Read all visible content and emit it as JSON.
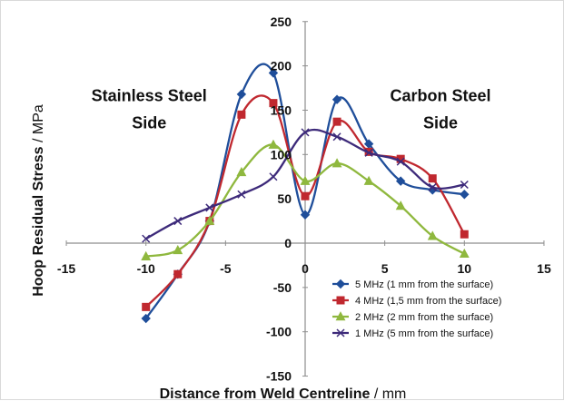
{
  "chart_data": {
    "type": "line",
    "title": "",
    "xlabel": {
      "bold": "Distance from Weld Centreline",
      "rest": " / mm"
    },
    "ylabel": {
      "bold": "Hoop Residual Stress",
      "rest": " / MPa"
    },
    "xlim": [
      -15,
      15
    ],
    "ylim": [
      -150,
      250
    ],
    "xticks": [
      -15,
      -10,
      -5,
      0,
      5,
      10,
      15
    ],
    "yticks": [
      -150,
      -100,
      -50,
      0,
      50,
      100,
      150,
      200,
      250
    ],
    "grid": false,
    "legend_position": "lower-right",
    "annotations": [
      {
        "lines": [
          "Stainless Steel",
          "Side"
        ],
        "x": -9.8,
        "y": 160
      },
      {
        "lines": [
          "Carbon Steel",
          "Side"
        ],
        "x": 8.5,
        "y": 160
      }
    ],
    "series": [
      {
        "name": "5 MHz (1 mm from the surface)",
        "color": "#1f4e9a",
        "marker": "diamond",
        "x": [
          -10,
          -8,
          -6,
          -4,
          -2,
          0,
          2,
          4,
          6,
          8,
          10
        ],
        "y": [
          -85,
          -35,
          25,
          168,
          192,
          32,
          162,
          112,
          70,
          60,
          55
        ]
      },
      {
        "name": "4 MHz (1,5 mm from the surface)",
        "color": "#c0282f",
        "marker": "square",
        "x": [
          -10,
          -8,
          -6,
          -4,
          -2,
          0,
          2,
          4,
          6,
          8,
          10
        ],
        "y": [
          -72,
          -35,
          25,
          145,
          158,
          53,
          137,
          103,
          95,
          73,
          10
        ]
      },
      {
        "name": "2 MHz (2 mm from the surface)",
        "color": "#8fb83e",
        "marker": "triangle",
        "x": [
          -10,
          -8,
          -6,
          -4,
          -2,
          0,
          2,
          4,
          6,
          8,
          10
        ],
        "y": [
          -15,
          -8,
          25,
          80,
          111,
          70,
          90,
          70,
          42,
          8,
          -12
        ]
      },
      {
        "name": "1 MHz (5 mm from the surface)",
        "color": "#3d2a7a",
        "marker": "x",
        "x": [
          -10,
          -8,
          -6,
          -4,
          -2,
          0,
          2,
          4,
          6,
          8,
          10
        ],
        "y": [
          5,
          25,
          40,
          55,
          75,
          125,
          120,
          102,
          92,
          63,
          66
        ]
      }
    ]
  }
}
